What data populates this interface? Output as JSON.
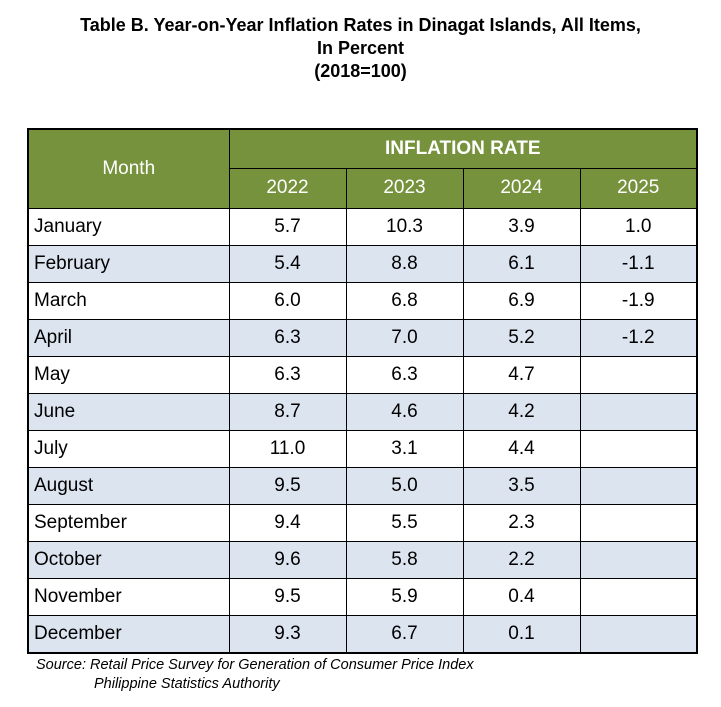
{
  "title": {
    "line1": "Table B. Year-on-Year Inflation Rates in Dinagat Islands, All Items,",
    "line2": "In Percent",
    "line3": "(2018=100)"
  },
  "table": {
    "month_header": "Month",
    "group_header": "INFLATION RATE",
    "years": [
      "2022",
      "2023",
      "2024",
      "2025"
    ],
    "rows": [
      [
        "January",
        "5.7",
        "10.3",
        "3.9",
        "1.0"
      ],
      [
        "February",
        "5.4",
        "8.8",
        "6.1",
        "-1.1"
      ],
      [
        "March",
        "6.0",
        "6.8",
        "6.9",
        "-1.9"
      ],
      [
        "April",
        "6.3",
        "7.0",
        "5.2",
        "-1.2"
      ],
      [
        "May",
        "6.3",
        "6.3",
        "4.7",
        ""
      ],
      [
        "June",
        "8.7",
        "4.6",
        "4.2",
        ""
      ],
      [
        "July",
        "11.0",
        "3.1",
        "4.4",
        ""
      ],
      [
        "August",
        "9.5",
        "5.0",
        "3.5",
        ""
      ],
      [
        "September",
        "9.4",
        "5.5",
        "2.3",
        ""
      ],
      [
        "October",
        "9.6",
        "5.8",
        "2.2",
        ""
      ],
      [
        "November",
        "9.5",
        "5.9",
        "0.4",
        ""
      ],
      [
        "December",
        "9.3",
        "6.7",
        "0.1",
        ""
      ]
    ]
  },
  "source": {
    "line1": "Source: Retail Price Survey for Generation of Consumer Price Index",
    "line2": "Philippine Statistics Authority"
  },
  "colors": {
    "header_bg": "#76923c",
    "stripe_bg": "#dce4f0"
  },
  "chart_data": {
    "type": "table",
    "title": "Table B. Year-on-Year Inflation Rates in Dinagat Islands, All Items, In Percent (2018=100)",
    "columns": [
      "Month",
      "2022",
      "2023",
      "2024",
      "2025"
    ],
    "categories": [
      "January",
      "February",
      "March",
      "April",
      "May",
      "June",
      "July",
      "August",
      "September",
      "October",
      "November",
      "December"
    ],
    "series": [
      {
        "name": "2022",
        "values": [
          5.7,
          5.4,
          6.0,
          6.3,
          6.3,
          8.7,
          11.0,
          9.5,
          9.4,
          9.6,
          9.5,
          9.3
        ]
      },
      {
        "name": "2023",
        "values": [
          10.3,
          8.8,
          6.8,
          7.0,
          6.3,
          4.6,
          3.1,
          5.0,
          5.5,
          5.8,
          5.9,
          6.7
        ]
      },
      {
        "name": "2024",
        "values": [
          3.9,
          6.1,
          6.9,
          5.2,
          4.7,
          4.2,
          4.4,
          3.5,
          2.3,
          2.2,
          0.4,
          0.1
        ]
      },
      {
        "name": "2025",
        "values": [
          1.0,
          -1.1,
          -1.9,
          -1.2,
          null,
          null,
          null,
          null,
          null,
          null,
          null,
          null
        ]
      }
    ]
  }
}
